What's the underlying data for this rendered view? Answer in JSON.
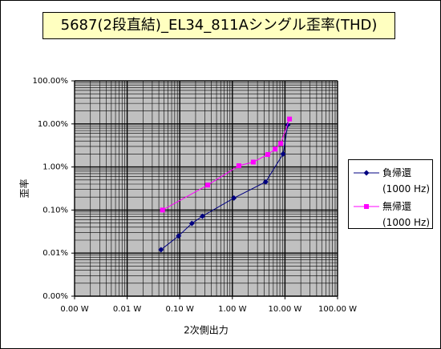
{
  "chart_data": {
    "type": "scatter-line",
    "title": "5687(2段直結)_EL34_811Aシングル歪率(THD)",
    "x_label": "2次側出力",
    "y_label": "歪率",
    "log_x": true,
    "log_y": true,
    "grid": true,
    "minor_grid": true,
    "legend": "right",
    "xlim": [
      0.001,
      100
    ],
    "ylim": [
      0.001,
      100
    ],
    "xticks": [
      {
        "value": 0.001,
        "label": "0.00 W"
      },
      {
        "value": 0.01,
        "label": "0.01 W"
      },
      {
        "value": 0.1,
        "label": "0.10 W"
      },
      {
        "value": 1,
        "label": "1.00 W"
      },
      {
        "value": 10,
        "label": "10.00 W"
      },
      {
        "value": 100,
        "label": "100.00 W"
      }
    ],
    "yticks": [
      {
        "value": 0.001,
        "label": "0.00%"
      },
      {
        "value": 0.01,
        "label": "0.01%"
      },
      {
        "value": 0.1,
        "label": "0.10%"
      },
      {
        "value": 1,
        "label": "1.00%"
      },
      {
        "value": 10,
        "label": "10.00%"
      },
      {
        "value": 100,
        "label": "100.00%"
      }
    ],
    "series": [
      {
        "name": "負帰還\n(1000 Hz)",
        "color": "#000080",
        "marker": "diamond",
        "x": [
          0.044,
          0.095,
          0.17,
          0.27,
          1.07,
          4.3,
          9.2,
          11.3
        ],
        "values": [
          0.012,
          0.025,
          0.049,
          0.072,
          0.19,
          0.45,
          2.0,
          9.5
        ]
      },
      {
        "name": "無帰還\n(1000 Hz)",
        "color": "#ff00ff",
        "marker": "square",
        "x": [
          0.047,
          0.34,
          1.33,
          2.5,
          4.7,
          6.5,
          8.3,
          12.2
        ],
        "values": [
          0.1,
          0.38,
          1.07,
          1.3,
          1.95,
          2.6,
          3.5,
          13
        ]
      }
    ]
  }
}
